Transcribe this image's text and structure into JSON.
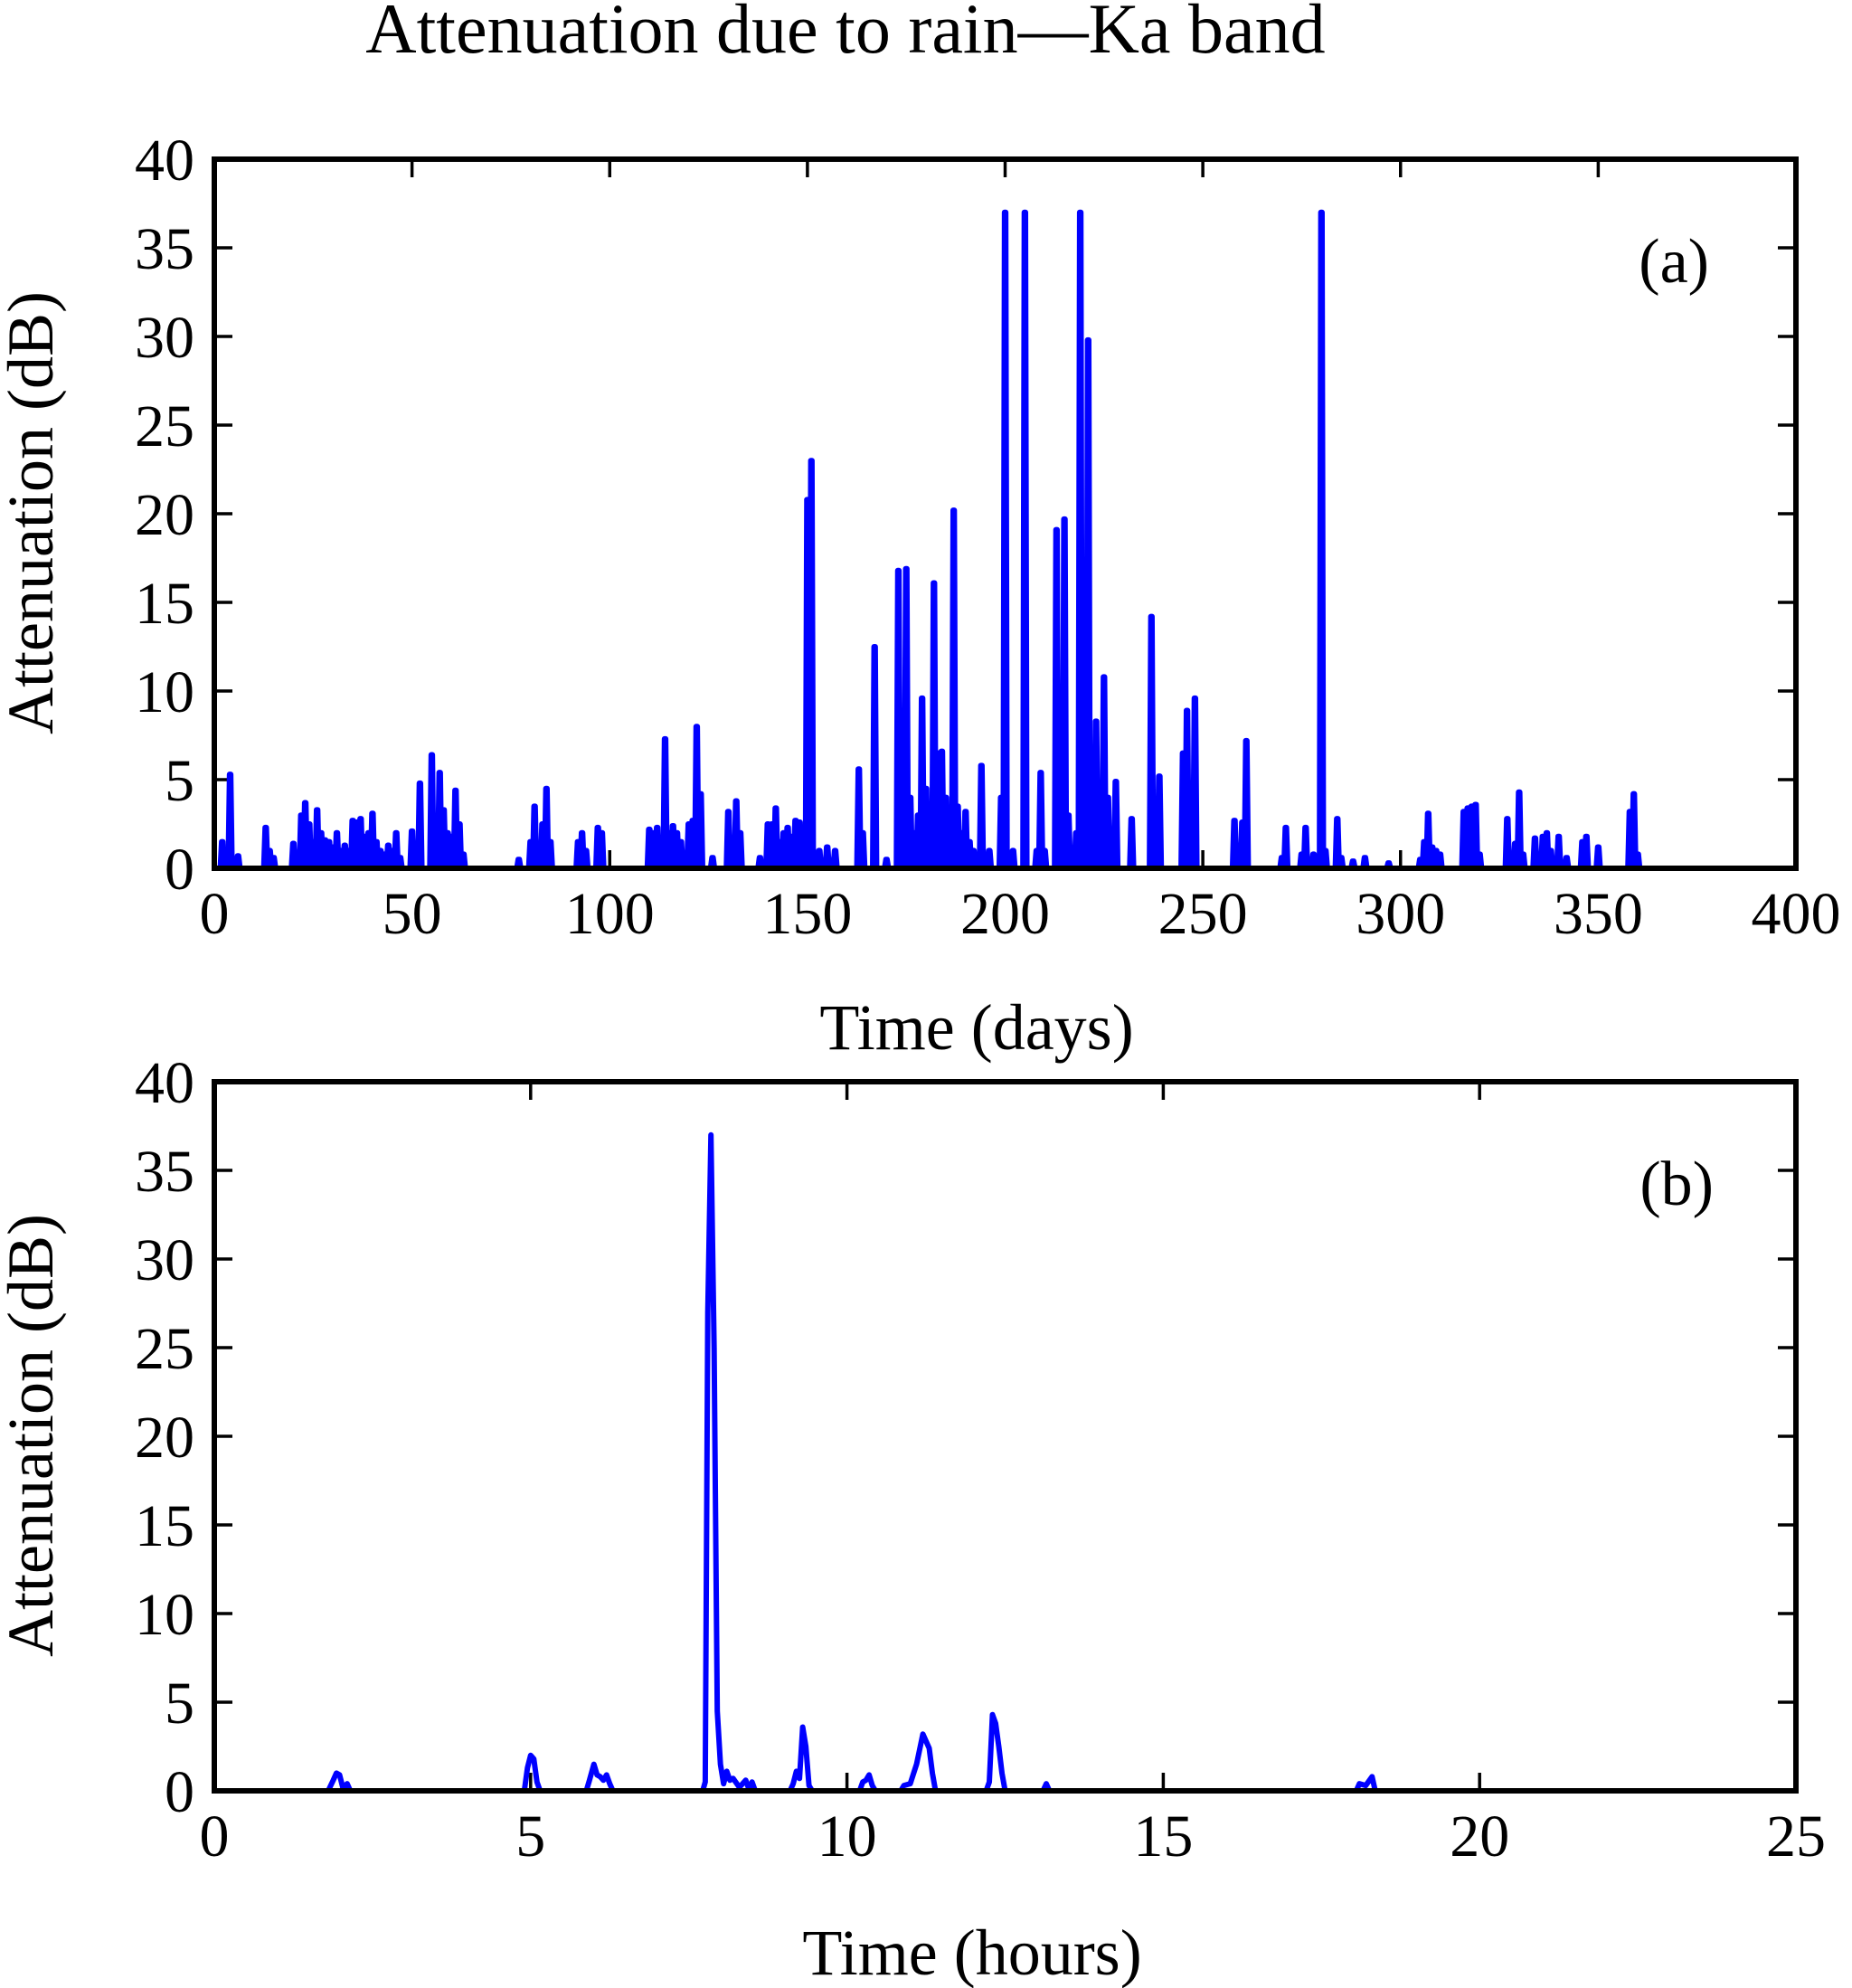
{
  "figure_title": "Attenuation due to rain—Ka  band",
  "colors": {
    "series": "#0000ff",
    "axes": "#000000"
  },
  "chart_data": [
    {
      "type": "line",
      "panel_label": "(a)",
      "title": "Attenuation due to rain—Ka  band",
      "xlabel": "Time (days)",
      "ylabel": "Attenuation (dB)",
      "xlim": [
        0,
        400
      ],
      "ylim": [
        0,
        40
      ],
      "xticks": [
        0,
        50,
        100,
        150,
        200,
        250,
        300,
        350,
        400
      ],
      "yticks": [
        0,
        5,
        10,
        15,
        20,
        25,
        30,
        35,
        40
      ],
      "grid": false,
      "spikes": [
        [
          2,
          1.5
        ],
        [
          4,
          5.3
        ],
        [
          6,
          0.7
        ],
        [
          13,
          2.3
        ],
        [
          14,
          1.0
        ],
        [
          15,
          0.6
        ],
        [
          20,
          1.4
        ],
        [
          22,
          3.0
        ],
        [
          23,
          3.7
        ],
        [
          24,
          2.5
        ],
        [
          25,
          1.5
        ],
        [
          26,
          3.3
        ],
        [
          27,
          2.0
        ],
        [
          28,
          1.6
        ],
        [
          29,
          1.5
        ],
        [
          30,
          1.2
        ],
        [
          31,
          2.0
        ],
        [
          32,
          1.0
        ],
        [
          33,
          1.3
        ],
        [
          34,
          1.0
        ],
        [
          35,
          2.7
        ],
        [
          36,
          2.6
        ],
        [
          37,
          2.8
        ],
        [
          38,
          1.8
        ],
        [
          39,
          2.0
        ],
        [
          40,
          3.1
        ],
        [
          41,
          1.5
        ],
        [
          42,
          1.0
        ],
        [
          43,
          0.8
        ],
        [
          44,
          1.3
        ],
        [
          45,
          1.0
        ],
        [
          46,
          2.0
        ],
        [
          47,
          0.6
        ],
        [
          50,
          2.1
        ],
        [
          52,
          4.8
        ],
        [
          55,
          6.4
        ],
        [
          57,
          5.4
        ],
        [
          58,
          3.3
        ],
        [
          59,
          2.0
        ],
        [
          60,
          1.8
        ],
        [
          61,
          4.4
        ],
        [
          62,
          2.5
        ],
        [
          63,
          0.8
        ],
        [
          77,
          0.5
        ],
        [
          80,
          1.5
        ],
        [
          81,
          3.5
        ],
        [
          82,
          1.0
        ],
        [
          83,
          2.5
        ],
        [
          84,
          4.5
        ],
        [
          85,
          1.5
        ],
        [
          92,
          1.5
        ],
        [
          93,
          2.0
        ],
        [
          94,
          1.0
        ],
        [
          97,
          2.3
        ],
        [
          98,
          2.0
        ],
        [
          110,
          2.2
        ],
        [
          111,
          2.0
        ],
        [
          112,
          2.3
        ],
        [
          113,
          1.5
        ],
        [
          114,
          7.3
        ],
        [
          115,
          2.0
        ],
        [
          116,
          2.4
        ],
        [
          117,
          2.0
        ],
        [
          118,
          1.5
        ],
        [
          120,
          2.5
        ],
        [
          121,
          2.7
        ],
        [
          122,
          8.0
        ],
        [
          123,
          4.2
        ],
        [
          126,
          0.6
        ],
        [
          130,
          3.2
        ],
        [
          132,
          3.8
        ],
        [
          133,
          2.0
        ],
        [
          138,
          0.6
        ],
        [
          140,
          2.5
        ],
        [
          141,
          2.5
        ],
        [
          142,
          3.4
        ],
        [
          143,
          1.5
        ],
        [
          144,
          2.0
        ],
        [
          145,
          2.3
        ],
        [
          146,
          1.8
        ],
        [
          147,
          2.7
        ],
        [
          148,
          2.6
        ],
        [
          150,
          20.8
        ],
        [
          151,
          23.0
        ],
        [
          153,
          1.0
        ],
        [
          155,
          1.2
        ],
        [
          157,
          1.0
        ],
        [
          163,
          5.6
        ],
        [
          164,
          2.0
        ],
        [
          167,
          12.5
        ],
        [
          170,
          0.5
        ],
        [
          173,
          16.8
        ],
        [
          174,
          5.0
        ],
        [
          175,
          16.9
        ],
        [
          176,
          4.0
        ],
        [
          177,
          2.0
        ],
        [
          178,
          3.0
        ],
        [
          179,
          9.6
        ],
        [
          180,
          4.5
        ],
        [
          181,
          2.0
        ],
        [
          182,
          16.1
        ],
        [
          183,
          6.5
        ],
        [
          184,
          6.6
        ],
        [
          185,
          4.0
        ],
        [
          186,
          3.0
        ],
        [
          187,
          20.2
        ],
        [
          188,
          3.5
        ],
        [
          189,
          2.0
        ],
        [
          190,
          3.2
        ],
        [
          191,
          1.5
        ],
        [
          192,
          1.0
        ],
        [
          194,
          5.8
        ],
        [
          196,
          1.0
        ],
        [
          199,
          4.0
        ],
        [
          200,
          37.0
        ],
        [
          202,
          1.0
        ],
        [
          205,
          37.0
        ],
        [
          208,
          1.0
        ],
        [
          209,
          5.4
        ],
        [
          210,
          1.0
        ],
        [
          213,
          19.1
        ],
        [
          214,
          3.0
        ],
        [
          215,
          19.7
        ],
        [
          216,
          3.0
        ],
        [
          218,
          2.0
        ],
        [
          219,
          37.0
        ],
        [
          220,
          8.0
        ],
        [
          221,
          29.8
        ],
        [
          222,
          2.0
        ],
        [
          223,
          8.3
        ],
        [
          224,
          3.0
        ],
        [
          225,
          10.8
        ],
        [
          226,
          4.0
        ],
        [
          228,
          4.9
        ],
        [
          232,
          2.8
        ],
        [
          237,
          14.2
        ],
        [
          238,
          1.0
        ],
        [
          239,
          5.2
        ],
        [
          245,
          6.5
        ],
        [
          246,
          8.9
        ],
        [
          247,
          2.0
        ],
        [
          248,
          9.6
        ],
        [
          258,
          2.7
        ],
        [
          260,
          2.6
        ],
        [
          261,
          7.2
        ],
        [
          270,
          0.6
        ],
        [
          271,
          2.3
        ],
        [
          275,
          0.8
        ],
        [
          276,
          2.3
        ],
        [
          278,
          0.8
        ],
        [
          280,
          37.0
        ],
        [
          281,
          1.0
        ],
        [
          284,
          2.8
        ],
        [
          285,
          0.6
        ],
        [
          288,
          0.4
        ],
        [
          291,
          0.6
        ],
        [
          297,
          0.3
        ],
        [
          305,
          0.5
        ],
        [
          306,
          1.5
        ],
        [
          307,
          3.1
        ],
        [
          308,
          1.2
        ],
        [
          309,
          1.0
        ],
        [
          310,
          0.8
        ],
        [
          316,
          3.2
        ],
        [
          317,
          3.4
        ],
        [
          318,
          3.5
        ],
        [
          319,
          3.6
        ],
        [
          320,
          0.8
        ],
        [
          327,
          2.8
        ],
        [
          329,
          1.4
        ],
        [
          330,
          4.3
        ],
        [
          331,
          0.8
        ],
        [
          334,
          1.7
        ],
        [
          336,
          1.8
        ],
        [
          337,
          2.0
        ],
        [
          338,
          1.0
        ],
        [
          340,
          1.8
        ],
        [
          342,
          0.6
        ],
        [
          346,
          1.5
        ],
        [
          347,
          1.8
        ],
        [
          350,
          1.2
        ],
        [
          358,
          3.2
        ],
        [
          359,
          4.2
        ],
        [
          360,
          0.8
        ]
      ]
    },
    {
      "type": "line",
      "panel_label": "(b)",
      "xlabel": "Time (hours)",
      "ylabel": "Attenuation (dB)",
      "xlim": [
        0,
        25
      ],
      "ylim": [
        0,
        40
      ],
      "xticks": [
        0,
        5,
        10,
        15,
        20,
        25
      ],
      "yticks": [
        0,
        5,
        10,
        15,
        20,
        25,
        30,
        35,
        40
      ],
      "grid": false,
      "points": [
        [
          0,
          0
        ],
        [
          1.8,
          0
        ],
        [
          1.88,
          0.6
        ],
        [
          1.93,
          1.0
        ],
        [
          1.98,
          0.9
        ],
        [
          2.03,
          0.2
        ],
        [
          2.1,
          0.4
        ],
        [
          2.15,
          0
        ],
        [
          4.9,
          0
        ],
        [
          4.95,
          1.3
        ],
        [
          5.0,
          2.0
        ],
        [
          5.05,
          1.8
        ],
        [
          5.1,
          0.5
        ],
        [
          5.15,
          0
        ],
        [
          5.88,
          0
        ],
        [
          5.93,
          0.6
        ],
        [
          6.0,
          1.5
        ],
        [
          6.05,
          0.9
        ],
        [
          6.1,
          0.8
        ],
        [
          6.15,
          0.6
        ],
        [
          6.2,
          0.9
        ],
        [
          6.25,
          0.4
        ],
        [
          6.3,
          0
        ],
        [
          7.72,
          0
        ],
        [
          7.76,
          0.5
        ],
        [
          7.8,
          27.0
        ],
        [
          7.85,
          37.0
        ],
        [
          7.9,
          25.0
        ],
        [
          7.95,
          4.5
        ],
        [
          8.0,
          1.5
        ],
        [
          8.05,
          0.4
        ],
        [
          8.1,
          1.1
        ],
        [
          8.15,
          0.6
        ],
        [
          8.2,
          0.7
        ],
        [
          8.3,
          0.2
        ],
        [
          8.4,
          0.6
        ],
        [
          8.45,
          0.1
        ],
        [
          8.5,
          0.5
        ],
        [
          8.55,
          0
        ],
        [
          9.1,
          0
        ],
        [
          9.15,
          0.4
        ],
        [
          9.2,
          1.1
        ],
        [
          9.25,
          0.7
        ],
        [
          9.3,
          3.6
        ],
        [
          9.35,
          2.5
        ],
        [
          9.4,
          0.3
        ],
        [
          9.45,
          0
        ],
        [
          10.2,
          0
        ],
        [
          10.25,
          0.5
        ],
        [
          10.3,
          0.6
        ],
        [
          10.35,
          0.9
        ],
        [
          10.4,
          0.3
        ],
        [
          10.45,
          0
        ],
        [
          10.85,
          0
        ],
        [
          10.9,
          0.3
        ],
        [
          11.0,
          0.4
        ],
        [
          11.1,
          1.5
        ],
        [
          11.2,
          3.2
        ],
        [
          11.3,
          2.4
        ],
        [
          11.35,
          1.0
        ],
        [
          11.4,
          0
        ],
        [
          12.2,
          0
        ],
        [
          12.25,
          0.5
        ],
        [
          12.3,
          4.3
        ],
        [
          12.35,
          3.8
        ],
        [
          12.4,
          2.5
        ],
        [
          12.45,
          1.0
        ],
        [
          12.5,
          0
        ],
        [
          13.1,
          0
        ],
        [
          13.15,
          0.4
        ],
        [
          13.2,
          0
        ],
        [
          18.05,
          0
        ],
        [
          18.1,
          0.4
        ],
        [
          18.2,
          0.3
        ],
        [
          18.3,
          0.8
        ],
        [
          18.35,
          0
        ],
        [
          24,
          0
        ]
      ]
    }
  ]
}
